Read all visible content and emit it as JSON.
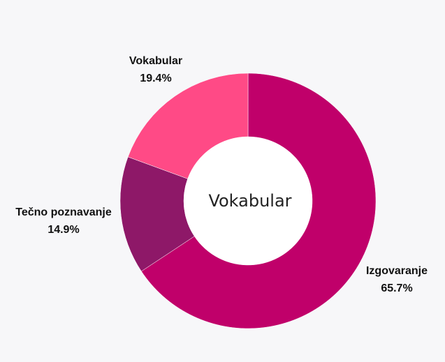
{
  "chart_data": {
    "type": "pie",
    "title": "",
    "center_label": "Vokabular",
    "slices": [
      {
        "label": "Izgovaranje",
        "value": 65.7,
        "value_label": "65.7%",
        "color": "#c0006a"
      },
      {
        "label": "Tečno poznavanje",
        "value": 14.9,
        "value_label": "14.9%",
        "color": "#8e1868"
      },
      {
        "label": "Vokabular",
        "value": 19.4,
        "value_label": "19.4%",
        "color": "#ff4a86"
      }
    ],
    "background": "#f7f7f9",
    "donut": true,
    "start": "top",
    "direction": "clockwise"
  }
}
